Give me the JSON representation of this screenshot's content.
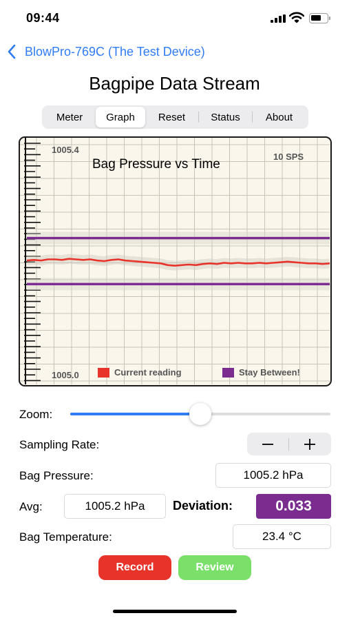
{
  "status_bar": {
    "time": "09:44"
  },
  "nav": {
    "back_label": "BlowPro-769C (The Test Device)"
  },
  "title": "Bagpipe Data Stream",
  "tabs": [
    {
      "label": "Meter",
      "selected": false
    },
    {
      "label": "Graph",
      "selected": true
    },
    {
      "label": "Reset",
      "selected": false
    },
    {
      "label": "Status",
      "selected": false
    },
    {
      "label": "About",
      "selected": false
    }
  ],
  "chart_data": {
    "type": "line",
    "title": "Bag Pressure vs Time",
    "rate_label": "10 SPS",
    "ymax_label": "1005.4",
    "ymin_label": "1005.0",
    "ylim": [
      1005.0,
      1005.4
    ],
    "legend": [
      {
        "label": "Current reading",
        "color": "#e8332a"
      },
      {
        "label": "Stay Between!",
        "color": "#7b2d8f"
      }
    ],
    "thresholds": [
      1005.24,
      1005.16
    ],
    "series": [
      {
        "name": "Current reading",
        "color": "#e8332a",
        "values": [
          1005.201,
          1005.202,
          1005.201,
          1005.203,
          1005.203,
          1005.202,
          1005.204,
          1005.203,
          1005.202,
          1005.203,
          1005.201,
          1005.2,
          1005.202,
          1005.203,
          1005.201,
          1005.2,
          1005.199,
          1005.198,
          1005.197,
          1005.196,
          1005.193,
          1005.192,
          1005.193,
          1005.194,
          1005.193,
          1005.195,
          1005.196,
          1005.195,
          1005.197,
          1005.196,
          1005.197,
          1005.196,
          1005.196,
          1005.197,
          1005.196,
          1005.197,
          1005.198,
          1005.199,
          1005.198,
          1005.197,
          1005.196,
          1005.196,
          1005.195,
          1005.196
        ]
      }
    ],
    "grid": true
  },
  "controls": {
    "zoom_label": "Zoom:",
    "zoom_value": 0.5,
    "sampling_label": "Sampling Rate:",
    "stepper_minus": "−",
    "stepper_plus": "+",
    "pressure_label": "Bag Pressure:",
    "pressure_value": "1005.2 hPa",
    "avg_label": "Avg:",
    "avg_value": "1005.2 hPa",
    "deviation_label": "Deviation:",
    "deviation_value": "0.033",
    "temp_label": "Bag Temperature:",
    "temp_value": "23.4 °C"
  },
  "buttons": {
    "record": "Record",
    "review": "Review"
  },
  "colors": {
    "accent": "#2f7cf6",
    "record": "#e8332a",
    "review": "#7be06a",
    "deviation": "#7b2d8f"
  }
}
